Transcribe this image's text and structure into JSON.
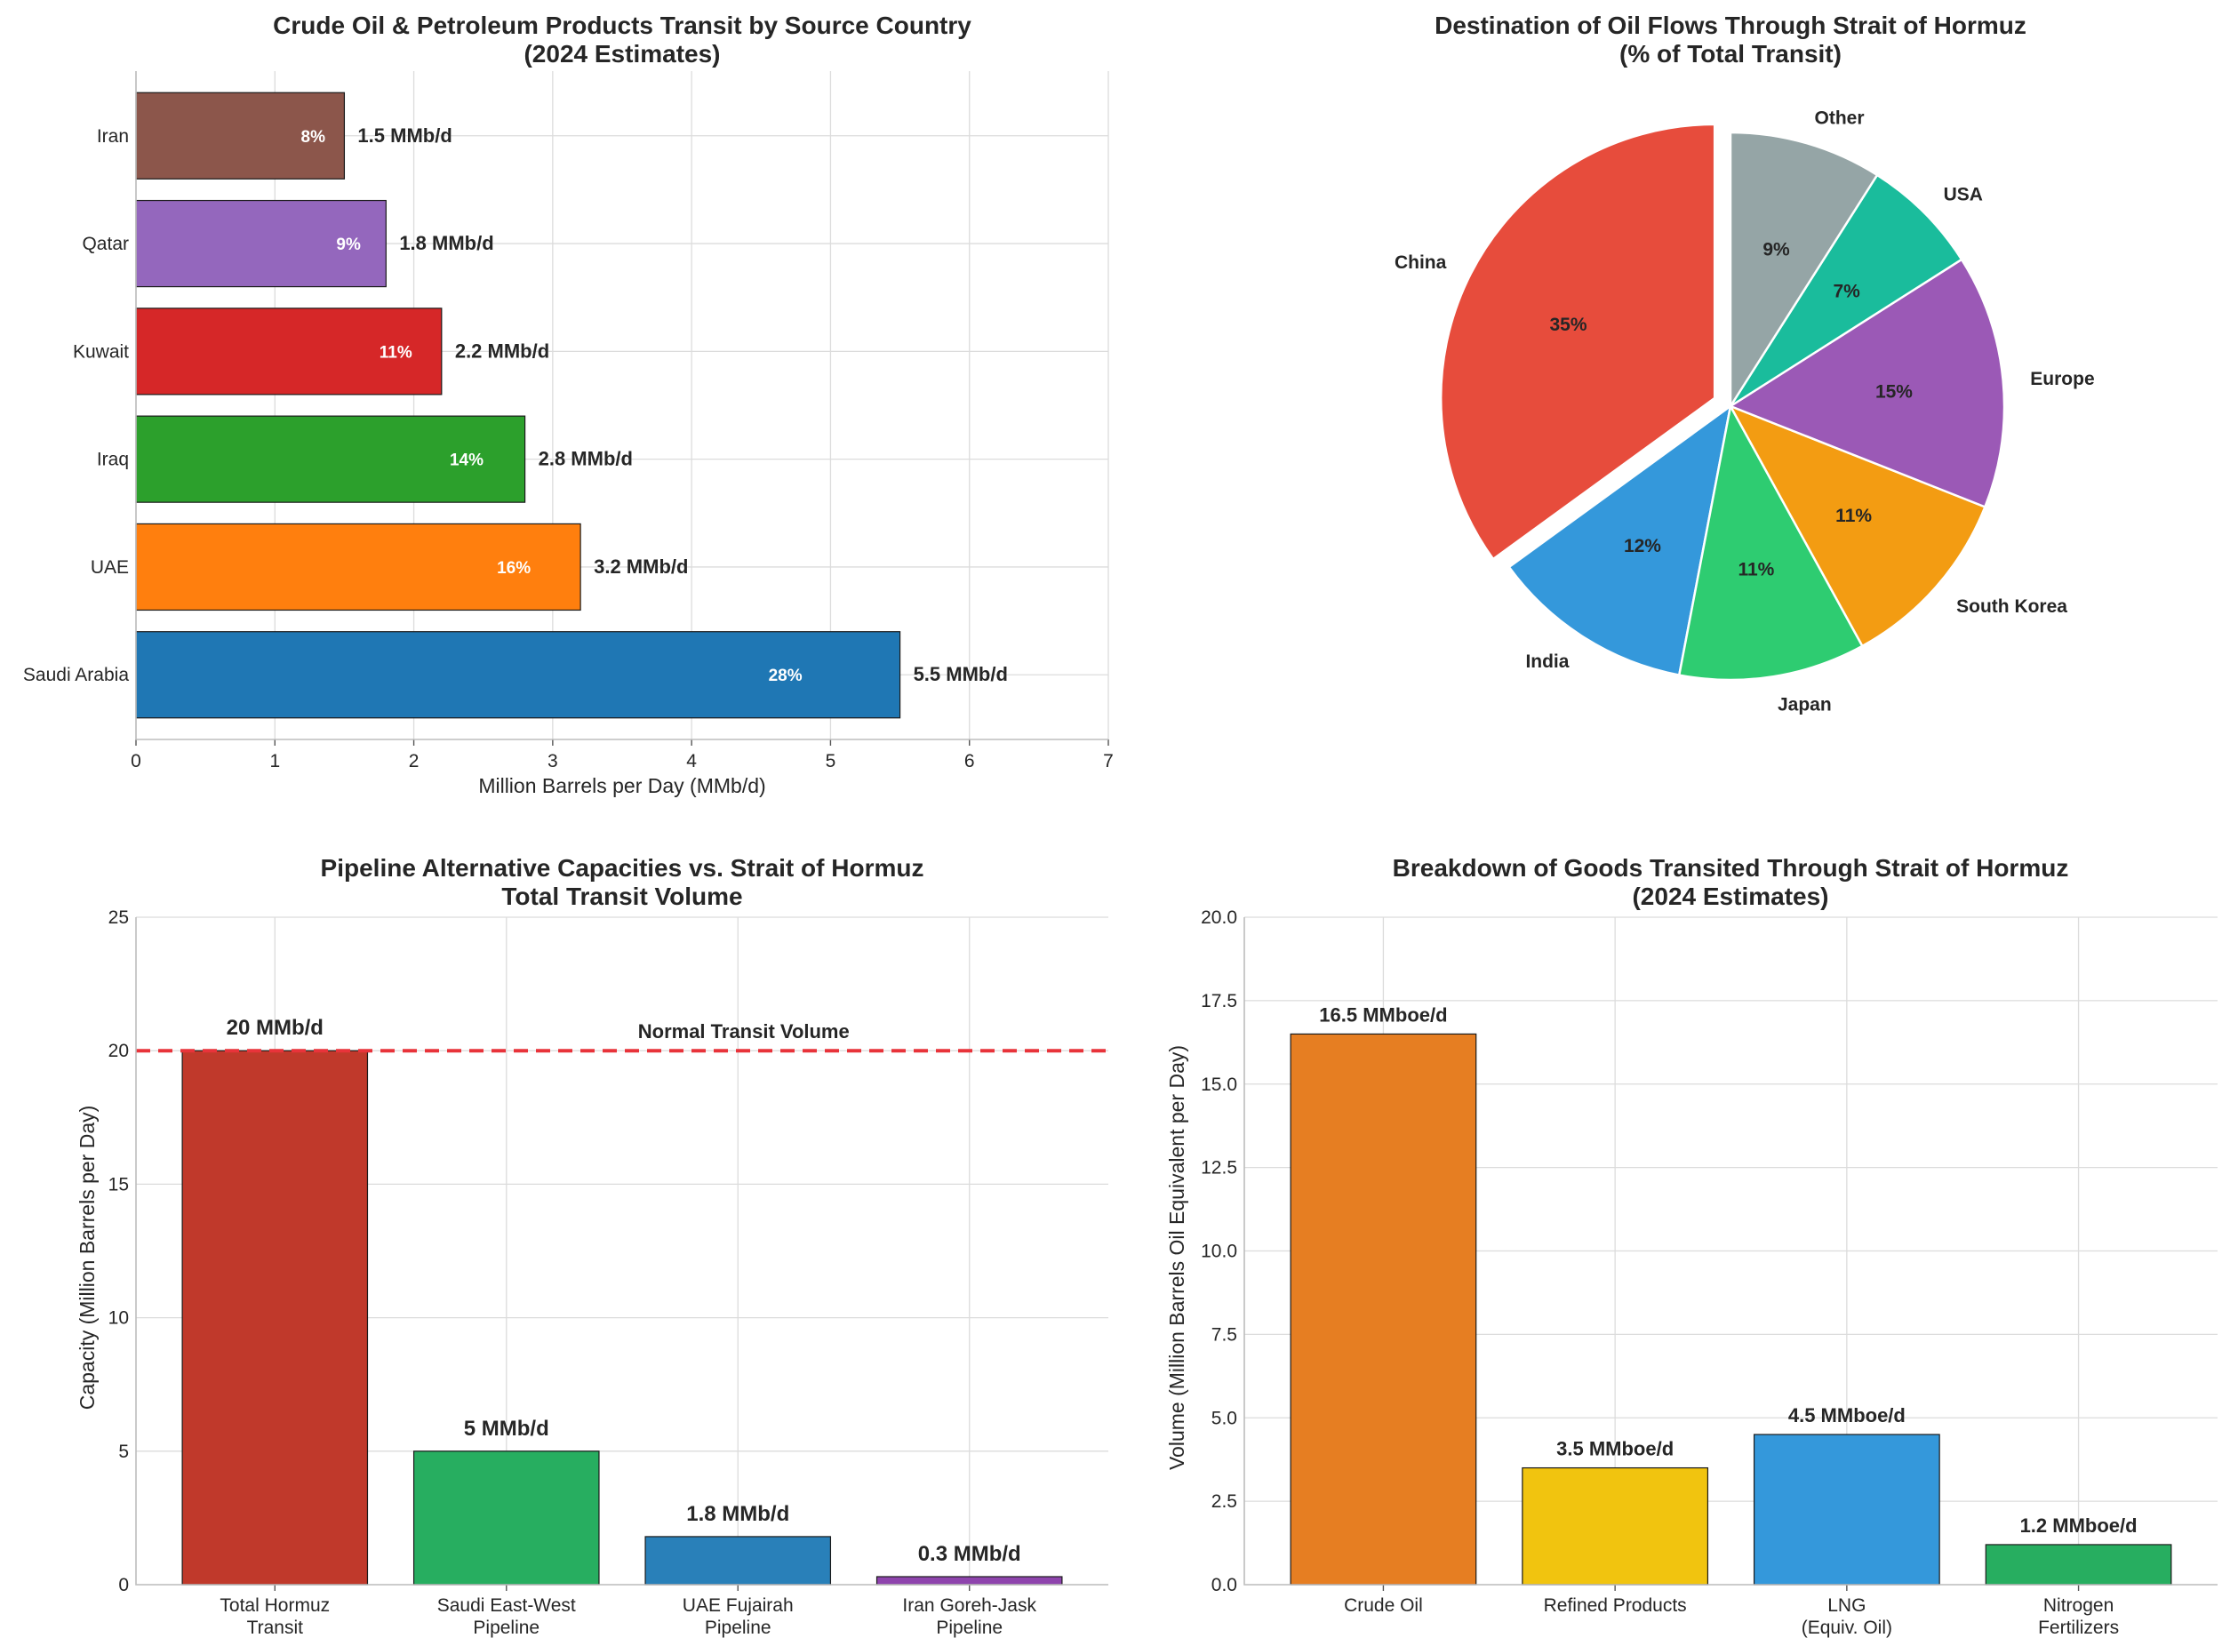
{
  "chart_data": [
    {
      "type": "bar",
      "orientation": "horizontal",
      "title": "Crude Oil & Petroleum Products Transit by Source Country",
      "subtitle": "(2024 Estimates)",
      "xlabel": "Million Barrels per Day (MMb/d)",
      "ylabel": "",
      "xlim": [
        0,
        7
      ],
      "xticks": [
        "0",
        "1",
        "2",
        "3",
        "4",
        "5",
        "6",
        "7"
      ],
      "grid": true,
      "categories": [
        "Saudi Arabia",
        "UAE",
        "Iraq",
        "Kuwait",
        "Qatar",
        "Iran"
      ],
      "values": [
        5.5,
        3.2,
        2.8,
        2.2,
        1.8,
        1.5
      ],
      "value_labels": [
        "5.5 MMb/d",
        "3.2 MMb/d",
        "2.8 MMb/d",
        "2.2 MMb/d",
        "1.8 MMb/d",
        "1.5 MMb/d"
      ],
      "share_labels": [
        "28%",
        "16%",
        "14%",
        "11%",
        "9%",
        "8%"
      ],
      "colors": [
        "#1f77b4",
        "#ff7f0e",
        "#2ca02c",
        "#d62728",
        "#9467bd",
        "#8c564b"
      ]
    },
    {
      "type": "pie",
      "title": "Destination of Oil Flows Through Strait of Hormuz",
      "subtitle": "(% of Total Transit)",
      "labels": [
        "China",
        "India",
        "Japan",
        "South Korea",
        "Europe",
        "USA",
        "Other"
      ],
      "values": [
        35,
        12,
        11,
        11,
        15,
        7,
        9
      ],
      "pct_labels": [
        "35%",
        "12%",
        "11%",
        "11%",
        "15%",
        "7%",
        "9%"
      ],
      "explode": [
        "China"
      ],
      "start": "top, counterclockwise",
      "colors": [
        "#e74c3c",
        "#3498db",
        "#2ecc71",
        "#f39c12",
        "#9b59b6",
        "#1abc9c",
        "#95a5a6"
      ]
    },
    {
      "type": "bar",
      "title": "Pipeline Alternative Capacities vs. Strait of Hormuz",
      "subtitle": "Total Transit Volume",
      "xlabel": "",
      "ylabel": "Capacity (Million Barrels per Day)",
      "ylim": [
        0,
        25
      ],
      "yticks": [
        "0",
        "5",
        "10",
        "15",
        "20",
        "25"
      ],
      "grid": true,
      "categories": [
        [
          "Total Hormuz",
          "Transit"
        ],
        [
          "Saudi East-West",
          "Pipeline"
        ],
        [
          "UAE Fujairah",
          "Pipeline"
        ],
        [
          "Iran Goreh-Jask",
          "Pipeline"
        ]
      ],
      "values": [
        20,
        5,
        1.8,
        0.3
      ],
      "value_labels": [
        "20 MMb/d",
        "5 MMb/d",
        "1.8 MMb/d",
        "0.3 MMb/d"
      ],
      "colors": [
        "#c0392b",
        "#27ae60",
        "#2980b9",
        "#8e44ad"
      ],
      "reference_line": {
        "value": 20,
        "label": "Normal Transit Volume",
        "color": "#e8333a"
      }
    },
    {
      "type": "bar",
      "title": "Breakdown of Goods Transited Through Strait of Hormuz",
      "subtitle": "(2024 Estimates)",
      "xlabel": "",
      "ylabel": "Volume (Million Barrels Oil Equivalent per Day)",
      "ylim": [
        0,
        20
      ],
      "yticks": [
        "0.0",
        "2.5",
        "5.0",
        "7.5",
        "10.0",
        "12.5",
        "15.0",
        "17.5",
        "20.0"
      ],
      "grid": true,
      "categories": [
        [
          "Crude Oil"
        ],
        [
          "Refined Products"
        ],
        [
          "LNG",
          "(Equiv. Oil)"
        ],
        [
          "Nitrogen",
          "Fertilizers"
        ]
      ],
      "values": [
        16.5,
        3.5,
        4.5,
        1.2
      ],
      "value_labels": [
        "16.5 MMboe/d",
        "3.5 MMboe/d",
        "4.5 MMboe/d",
        "1.2 MMboe/d"
      ],
      "colors": [
        "#e67e22",
        "#f1c40f",
        "#3498db",
        "#27ae60"
      ]
    }
  ]
}
